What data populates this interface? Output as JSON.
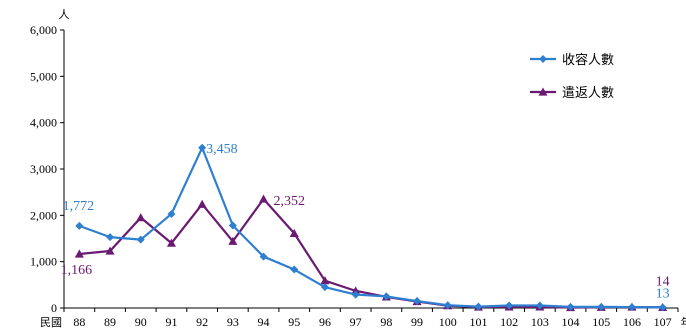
{
  "chart_data": {
    "type": "line",
    "y_unit": "人",
    "x_prefix": "民國",
    "x_suffix": "年",
    "categories": [
      "88",
      "89",
      "90",
      "91",
      "92",
      "93",
      "94",
      "95",
      "96",
      "97",
      "98",
      "99",
      "100",
      "101",
      "102",
      "103",
      "104",
      "105",
      "106",
      "107"
    ],
    "ylim": [
      0,
      6000
    ],
    "yticks": [
      "0",
      "1,000",
      "2,000",
      "3,000",
      "4,000",
      "5,000",
      "6,000"
    ],
    "ytick_values": [
      0,
      1000,
      2000,
      3000,
      4000,
      5000,
      6000
    ],
    "grid": false,
    "legend_position": "top-right",
    "series": [
      {
        "name": "收容人數",
        "color": "#2f7fd0",
        "marker": "diamond",
        "values": [
          1772,
          1530,
          1475,
          2030,
          3458,
          1780,
          1110,
          830,
          450,
          290,
          250,
          150,
          60,
          30,
          55,
          55,
          25,
          25,
          20,
          13
        ]
      },
      {
        "name": "遣返人數",
        "color": "#6b1a72",
        "marker": "triangle",
        "values": [
          1166,
          1230,
          1950,
          1400,
          2240,
          1440,
          2352,
          1610,
          590,
          370,
          240,
          140,
          50,
          20,
          25,
          25,
          10,
          15,
          20,
          14
        ]
      }
    ],
    "annotations": [
      {
        "series": 0,
        "index": 0,
        "text": "1,772"
      },
      {
        "series": 1,
        "index": 0,
        "text": "1,166"
      },
      {
        "series": 0,
        "index": 4,
        "text": "3,458"
      },
      {
        "series": 1,
        "index": 6,
        "text": "2,352"
      },
      {
        "series": 1,
        "index": 19,
        "text": "14"
      },
      {
        "series": 0,
        "index": 19,
        "text": "13"
      }
    ]
  }
}
